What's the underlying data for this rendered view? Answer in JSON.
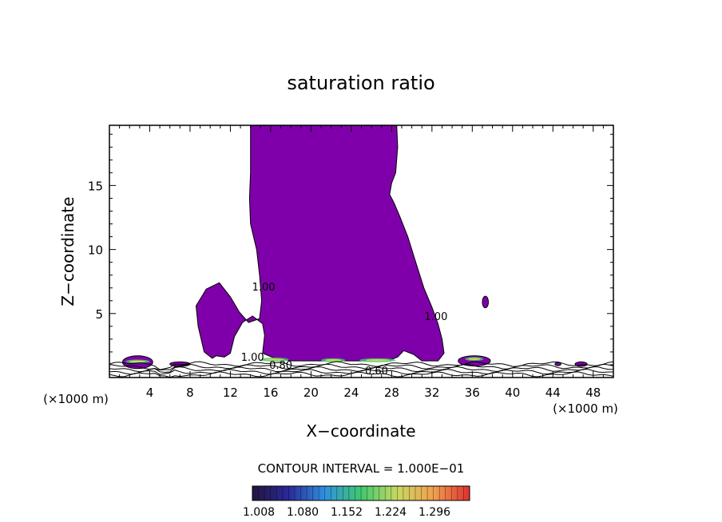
{
  "chart_data": {
    "type": "contour",
    "title": "saturation ratio",
    "xlabel": "X−coordinate",
    "ylabel": "Z−coordinate",
    "x_unit_left": "(×1000 m)",
    "x_unit_right": "(×1000 m)",
    "xlim": [
      0,
      50
    ],
    "ylim": [
      0,
      19.7
    ],
    "x_ticks": [
      4,
      8,
      12,
      16,
      20,
      24,
      28,
      32,
      36,
      40,
      44,
      48
    ],
    "y_ticks": [
      5,
      10,
      15
    ],
    "contour_interval_text": "CONTOUR INTERVAL = 1.000E−01",
    "contour_labels": [
      {
        "text": "1.00",
        "x": 15.3,
        "y": 6.8
      },
      {
        "text": "1.00",
        "x": 32.4,
        "y": 4.5
      },
      {
        "text": "0.80",
        "x": 17.0,
        "y": 0.7
      },
      {
        "text": "0.60",
        "x": 26.5,
        "y": 0.25
      },
      {
        "text": "1.00",
        "x": 14.2,
        "y": 1.3
      }
    ],
    "plume_outline": [
      [
        14.0,
        19.7
      ],
      [
        28.5,
        19.7
      ],
      [
        28.6,
        18.0
      ],
      [
        28.4,
        16.0
      ],
      [
        28.0,
        15.2
      ],
      [
        27.8,
        14.3
      ],
      [
        28.2,
        13.7
      ],
      [
        28.8,
        12.6
      ],
      [
        29.6,
        11.0
      ],
      [
        30.4,
        9.0
      ],
      [
        31.2,
        7.0
      ],
      [
        32.0,
        5.5
      ],
      [
        32.6,
        4.2
      ],
      [
        33.0,
        3.0
      ],
      [
        33.2,
        1.9
      ],
      [
        32.6,
        1.3
      ],
      [
        31.0,
        1.3
      ],
      [
        30.2,
        1.8
      ],
      [
        29.2,
        2.1
      ],
      [
        28.6,
        1.6
      ],
      [
        27.6,
        1.3
      ],
      [
        18.0,
        1.3
      ],
      [
        17.4,
        1.4
      ],
      [
        16.4,
        1.5
      ],
      [
        15.2,
        1.9
      ],
      [
        15.4,
        3.3
      ],
      [
        15.2,
        4.2
      ],
      [
        14.2,
        4.8
      ],
      [
        13.2,
        4.3
      ],
      [
        12.4,
        3.2
      ],
      [
        12.0,
        1.9
      ],
      [
        11.4,
        1.6
      ],
      [
        10.6,
        1.7
      ],
      [
        10.2,
        1.5
      ],
      [
        9.4,
        2.0
      ],
      [
        8.8,
        4.0
      ],
      [
        8.6,
        5.6
      ],
      [
        9.6,
        6.9
      ],
      [
        10.9,
        7.4
      ],
      [
        12.0,
        6.3
      ],
      [
        12.9,
        5.1
      ],
      [
        13.8,
        4.3
      ],
      [
        14.9,
        4.6
      ],
      [
        15.1,
        6.0
      ],
      [
        14.9,
        8.0
      ],
      [
        14.6,
        10.0
      ],
      [
        14.0,
        12.0
      ],
      [
        13.9,
        14.0
      ],
      [
        14.0,
        16.0
      ]
    ],
    "blobs": [
      {
        "x": 2.8,
        "y": 1.2,
        "w": 3.0,
        "h": 1.0
      },
      {
        "x": 7.0,
        "y": 1.05,
        "w": 2.0,
        "h": 0.35
      },
      {
        "x": 37.3,
        "y": 5.9,
        "w": 0.6,
        "h": 0.9
      },
      {
        "x": 36.2,
        "y": 1.3,
        "w": 3.2,
        "h": 0.8
      },
      {
        "x": 46.8,
        "y": 1.05,
        "w": 1.2,
        "h": 0.35
      },
      {
        "x": 44.5,
        "y": 1.05,
        "w": 0.6,
        "h": 0.25
      }
    ],
    "colorbar": {
      "labels": [
        "1.008",
        "1.080",
        "1.152",
        "1.224",
        "1.296"
      ],
      "colors": [
        "#23143c",
        "#2a2a9a",
        "#3090e0",
        "#40c870",
        "#c8d860",
        "#f0a050",
        "#e03030"
      ]
    },
    "fill_color": "#7f00aa"
  }
}
